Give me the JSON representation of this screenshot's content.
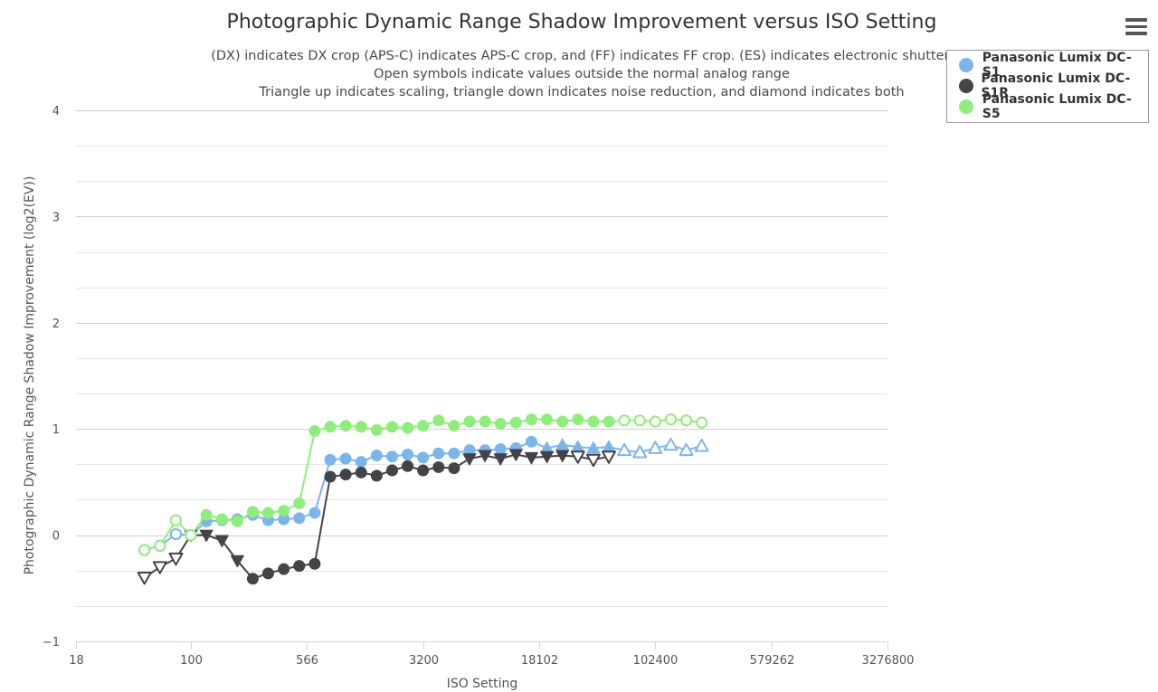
{
  "chart_data": {
    "type": "line",
    "title": "Photographic Dynamic Range Shadow Improvement versus ISO Setting",
    "subtitle": [
      "(DX) indicates DX crop (APS-C) indicates APS-C crop, and (FF) indicates FF crop. (ES) indicates electronic shutter.",
      "Open symbols indicate values outside the normal analog range",
      "Triangle up indicates scaling, triangle down indicates noise reduction, and diamond indicates both"
    ],
    "xlabel": "ISO Setting",
    "ylabel": "Photographic Dynamic Range Shadow Improvement (log2(EV))",
    "x_scale": "log",
    "xlim": [
      18,
      3276800
    ],
    "ylim": [
      -1,
      4
    ],
    "x_ticks": [
      {
        "value": 18,
        "label": "18"
      },
      {
        "value": 100,
        "label": "100"
      },
      {
        "value": 566,
        "label": "566"
      },
      {
        "value": 3200,
        "label": "3200"
      },
      {
        "value": 18102,
        "label": "18102"
      },
      {
        "value": 102400,
        "label": "102400"
      },
      {
        "value": 579262,
        "label": "579262"
      },
      {
        "value": 3276800,
        "label": "3276800"
      }
    ],
    "y_ticks": [
      {
        "value": -1,
        "label": "−1"
      },
      {
        "value": 0,
        "label": "0"
      },
      {
        "value": 1,
        "label": "1"
      },
      {
        "value": 2,
        "label": "2"
      },
      {
        "value": 3,
        "label": "3"
      },
      {
        "value": 4,
        "label": "4"
      }
    ],
    "grid": true,
    "legend_position": "top-right",
    "series": [
      {
        "name": "Panasonic Lumix DC-S1",
        "color": "#7cb5ec",
        "points": [
          {
            "x": 50,
            "y": -0.14,
            "m": "open"
          },
          {
            "x": 63,
            "y": -0.1,
            "m": "open"
          },
          {
            "x": 80,
            "y": 0.01,
            "m": "open"
          },
          {
            "x": 100,
            "y": 0.0,
            "m": "open"
          },
          {
            "x": 126,
            "y": 0.13,
            "m": "dot"
          },
          {
            "x": 159,
            "y": 0.14,
            "m": "dot"
          },
          {
            "x": 200,
            "y": 0.15,
            "m": "dot"
          },
          {
            "x": 252,
            "y": 0.19,
            "m": "dot"
          },
          {
            "x": 317,
            "y": 0.14,
            "m": "dot"
          },
          {
            "x": 400,
            "y": 0.15,
            "m": "dot"
          },
          {
            "x": 504,
            "y": 0.16,
            "m": "dot"
          },
          {
            "x": 635,
            "y": 0.21,
            "m": "dot"
          },
          {
            "x": 800,
            "y": 0.71,
            "m": "dot"
          },
          {
            "x": 1008,
            "y": 0.72,
            "m": "dot"
          },
          {
            "x": 1270,
            "y": 0.69,
            "m": "dot"
          },
          {
            "x": 1600,
            "y": 0.75,
            "m": "dot"
          },
          {
            "x": 2016,
            "y": 0.74,
            "m": "dot"
          },
          {
            "x": 2540,
            "y": 0.76,
            "m": "dot"
          },
          {
            "x": 3200,
            "y": 0.73,
            "m": "dot"
          },
          {
            "x": 4032,
            "y": 0.77,
            "m": "dot"
          },
          {
            "x": 5080,
            "y": 0.77,
            "m": "dot"
          },
          {
            "x": 6400,
            "y": 0.8,
            "m": "dot"
          },
          {
            "x": 8063,
            "y": 0.8,
            "m": "dot"
          },
          {
            "x": 10159,
            "y": 0.81,
            "m": "dot"
          },
          {
            "x": 12800,
            "y": 0.82,
            "m": "dot"
          },
          {
            "x": 16127,
            "y": 0.88,
            "m": "dot"
          },
          {
            "x": 20319,
            "y": 0.82,
            "m": "tri-up"
          },
          {
            "x": 25600,
            "y": 0.85,
            "m": "tri-up"
          },
          {
            "x": 32254,
            "y": 0.83,
            "m": "tri-up"
          },
          {
            "x": 40637,
            "y": 0.82,
            "m": "tri-up"
          },
          {
            "x": 51200,
            "y": 0.83,
            "m": "tri-up"
          },
          {
            "x": 64508,
            "y": 0.8,
            "m": "tri-up-open"
          },
          {
            "x": 81275,
            "y": 0.78,
            "m": "tri-up-open"
          },
          {
            "x": 102400,
            "y": 0.82,
            "m": "tri-up-open"
          },
          {
            "x": 129016,
            "y": 0.85,
            "m": "tri-up-open"
          },
          {
            "x": 162550,
            "y": 0.8,
            "m": "tri-up-open"
          },
          {
            "x": 204800,
            "y": 0.84,
            "m": "tri-up-open"
          }
        ]
      },
      {
        "name": "Panasonic Lumix DC-S1R",
        "color": "#434348",
        "points": [
          {
            "x": 50,
            "y": -0.4,
            "m": "tri-down-open"
          },
          {
            "x": 63,
            "y": -0.3,
            "m": "tri-down-open"
          },
          {
            "x": 80,
            "y": -0.22,
            "m": "tri-down-open"
          },
          {
            "x": 100,
            "y": 0.0,
            "m": "tri-down"
          },
          {
            "x": 126,
            "y": 0.0,
            "m": "tri-down"
          },
          {
            "x": 159,
            "y": -0.05,
            "m": "tri-down"
          },
          {
            "x": 200,
            "y": -0.24,
            "m": "tri-down"
          },
          {
            "x": 252,
            "y": -0.41,
            "m": "dot"
          },
          {
            "x": 317,
            "y": -0.36,
            "m": "dot"
          },
          {
            "x": 400,
            "y": -0.32,
            "m": "dot"
          },
          {
            "x": 504,
            "y": -0.29,
            "m": "dot"
          },
          {
            "x": 635,
            "y": -0.27,
            "m": "dot"
          },
          {
            "x": 800,
            "y": 0.55,
            "m": "dot"
          },
          {
            "x": 1008,
            "y": 0.57,
            "m": "dot"
          },
          {
            "x": 1270,
            "y": 0.59,
            "m": "dot"
          },
          {
            "x": 1600,
            "y": 0.56,
            "m": "dot"
          },
          {
            "x": 2016,
            "y": 0.61,
            "m": "dot"
          },
          {
            "x": 2540,
            "y": 0.65,
            "m": "dot"
          },
          {
            "x": 3200,
            "y": 0.61,
            "m": "dot"
          },
          {
            "x": 4032,
            "y": 0.64,
            "m": "dot"
          },
          {
            "x": 5080,
            "y": 0.63,
            "m": "dot"
          },
          {
            "x": 6400,
            "y": 0.72,
            "m": "tri-down"
          },
          {
            "x": 8063,
            "y": 0.75,
            "m": "tri-down"
          },
          {
            "x": 10159,
            "y": 0.72,
            "m": "tri-down"
          },
          {
            "x": 12800,
            "y": 0.76,
            "m": "tri-down"
          },
          {
            "x": 16127,
            "y": 0.73,
            "m": "tri-down"
          },
          {
            "x": 20319,
            "y": 0.74,
            "m": "tri-down"
          },
          {
            "x": 25600,
            "y": 0.75,
            "m": "tri-down"
          },
          {
            "x": 32254,
            "y": 0.74,
            "m": "tri-down-open"
          },
          {
            "x": 40637,
            "y": 0.71,
            "m": "tri-down-open"
          },
          {
            "x": 51200,
            "y": 0.74,
            "m": "tri-down-open"
          }
        ]
      },
      {
        "name": "Panasonic Lumix DC-S5",
        "color": "#90ed7d",
        "points": [
          {
            "x": 50,
            "y": -0.14,
            "m": "open"
          },
          {
            "x": 63,
            "y": -0.1,
            "m": "open"
          },
          {
            "x": 80,
            "y": 0.14,
            "m": "open"
          },
          {
            "x": 100,
            "y": 0.0,
            "m": "open"
          },
          {
            "x": 126,
            "y": 0.19,
            "m": "dot"
          },
          {
            "x": 159,
            "y": 0.15,
            "m": "dot"
          },
          {
            "x": 200,
            "y": 0.13,
            "m": "dot"
          },
          {
            "x": 252,
            "y": 0.22,
            "m": "dot"
          },
          {
            "x": 317,
            "y": 0.21,
            "m": "dot"
          },
          {
            "x": 400,
            "y": 0.23,
            "m": "dot"
          },
          {
            "x": 504,
            "y": 0.3,
            "m": "dot"
          },
          {
            "x": 635,
            "y": 0.98,
            "m": "dot"
          },
          {
            "x": 800,
            "y": 1.02,
            "m": "dot"
          },
          {
            "x": 1008,
            "y": 1.03,
            "m": "dot"
          },
          {
            "x": 1270,
            "y": 1.02,
            "m": "dot"
          },
          {
            "x": 1600,
            "y": 0.99,
            "m": "dot"
          },
          {
            "x": 2016,
            "y": 1.02,
            "m": "dot"
          },
          {
            "x": 2540,
            "y": 1.01,
            "m": "dot"
          },
          {
            "x": 3200,
            "y": 1.03,
            "m": "dot"
          },
          {
            "x": 4032,
            "y": 1.08,
            "m": "dot"
          },
          {
            "x": 5080,
            "y": 1.03,
            "m": "dot"
          },
          {
            "x": 6400,
            "y": 1.07,
            "m": "dot"
          },
          {
            "x": 8063,
            "y": 1.07,
            "m": "dot"
          },
          {
            "x": 10159,
            "y": 1.05,
            "m": "dot"
          },
          {
            "x": 12800,
            "y": 1.06,
            "m": "dot"
          },
          {
            "x": 16127,
            "y": 1.09,
            "m": "dot"
          },
          {
            "x": 20319,
            "y": 1.09,
            "m": "dot"
          },
          {
            "x": 25600,
            "y": 1.07,
            "m": "dot"
          },
          {
            "x": 32254,
            "y": 1.09,
            "m": "dot"
          },
          {
            "x": 40637,
            "y": 1.07,
            "m": "dot"
          },
          {
            "x": 51200,
            "y": 1.07,
            "m": "dot"
          },
          {
            "x": 64508,
            "y": 1.08,
            "m": "open"
          },
          {
            "x": 81275,
            "y": 1.08,
            "m": "open"
          },
          {
            "x": 102400,
            "y": 1.07,
            "m": "open"
          },
          {
            "x": 129016,
            "y": 1.09,
            "m": "open"
          },
          {
            "x": 162550,
            "y": 1.08,
            "m": "open"
          },
          {
            "x": 204800,
            "y": 1.06,
            "m": "open"
          }
        ]
      }
    ]
  },
  "menu": {
    "icon": "hamburger-menu-icon"
  }
}
